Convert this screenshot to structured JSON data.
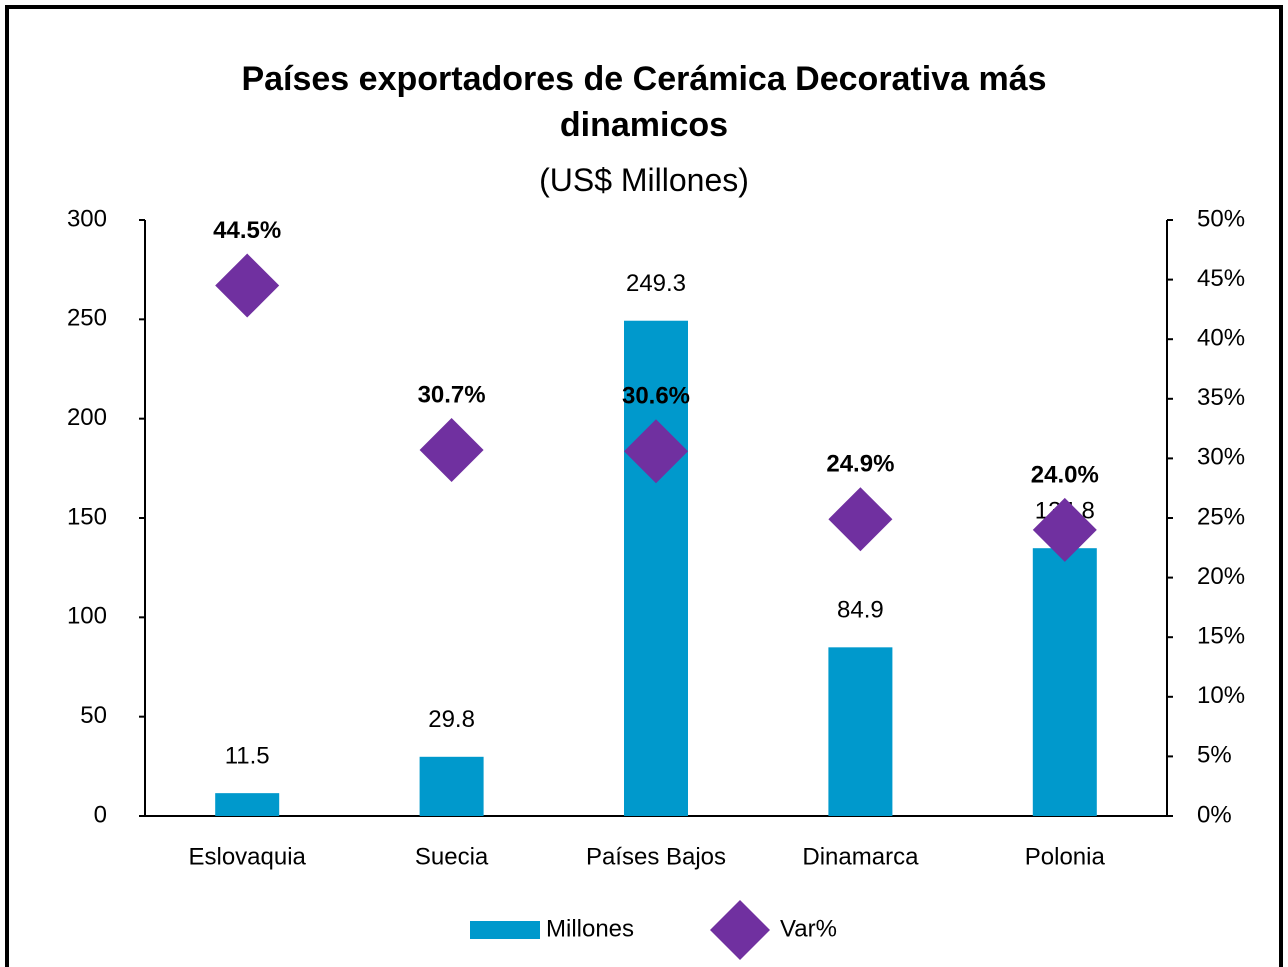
{
  "chart_data": {
    "type": "combo",
    "title": "Países exportadores de Cerámica Decorativa más dinamicos",
    "subtitle": "(US$ Millones)",
    "categories": [
      "Eslovaquia",
      "Suecia",
      "Países Bajos",
      "Dinamarca",
      "Polonia"
    ],
    "series": [
      {
        "name": "Millones",
        "type": "bar",
        "color": "#0099cc",
        "axis": "y",
        "values": [
          11.5,
          29.8,
          249.3,
          84.9,
          134.8
        ]
      },
      {
        "name": "Var%",
        "type": "scatter",
        "color": "#7030a0",
        "axis": "y2",
        "values": [
          44.5,
          30.7,
          30.6,
          24.9,
          24.0
        ],
        "value_labels": [
          "44.5%",
          "30.7%",
          "30.6%",
          "24.9%",
          "24.0%"
        ]
      }
    ],
    "ylim": [
      0,
      300
    ],
    "yticks": [
      0,
      50,
      100,
      150,
      200,
      250,
      300
    ],
    "y2lim": [
      0,
      50
    ],
    "y2ticks": [
      {
        "value": 0,
        "label": "0%"
      },
      {
        "value": 5,
        "label": "5%"
      },
      {
        "value": 10,
        "label": "10%"
      },
      {
        "value": 15,
        "label": "15%"
      },
      {
        "value": 20,
        "label": "20%"
      },
      {
        "value": 25,
        "label": "25%"
      },
      {
        "value": 30,
        "label": "30%"
      },
      {
        "value": 35,
        "label": "35%"
      },
      {
        "value": 40,
        "label": "40%"
      },
      {
        "value": 45,
        "label": "45%"
      },
      {
        "value": 50,
        "label": "50%"
      }
    ],
    "grid": false,
    "legend": "bottom"
  }
}
